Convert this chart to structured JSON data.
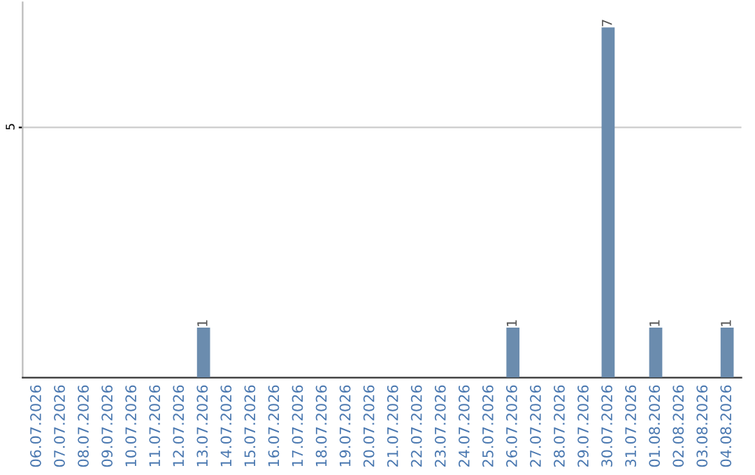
{
  "chart_data": {
    "type": "bar",
    "categories": [
      "06.07.2026",
      "07.07.2026",
      "08.07.2026",
      "09.07.2026",
      "10.07.2026",
      "11.07.2026",
      "12.07.2026",
      "13.07.2026",
      "14.07.2026",
      "15.07.2026",
      "16.07.2026",
      "17.07.2026",
      "18.07.2026",
      "19.07.2026",
      "20.07.2026",
      "21.07.2026",
      "22.07.2026",
      "23.07.2026",
      "24.07.2026",
      "25.07.2026",
      "26.07.2026",
      "27.07.2026",
      "28.07.2026",
      "29.07.2026",
      "30.07.2026",
      "31.07.2026",
      "01.08.2026",
      "02.08.2026",
      "03.08.2026",
      "04.08.2026"
    ],
    "values": [
      0,
      0,
      0,
      0,
      0,
      0,
      0,
      1,
      0,
      0,
      0,
      0,
      0,
      0,
      0,
      0,
      0,
      0,
      0,
      0,
      1,
      0,
      0,
      0,
      7,
      0,
      1,
      0,
      0,
      1
    ],
    "value_labels": [
      null,
      null,
      null,
      null,
      null,
      null,
      null,
      "1",
      null,
      null,
      null,
      null,
      null,
      null,
      null,
      null,
      null,
      null,
      null,
      null,
      "1",
      null,
      null,
      null,
      "7",
      null,
      "1",
      null,
      null,
      "1"
    ],
    "color": "#6b8cae",
    "ylim": [
      0,
      7.5
    ],
    "yticks": [
      5
    ],
    "grid": "y",
    "legend": false
  }
}
